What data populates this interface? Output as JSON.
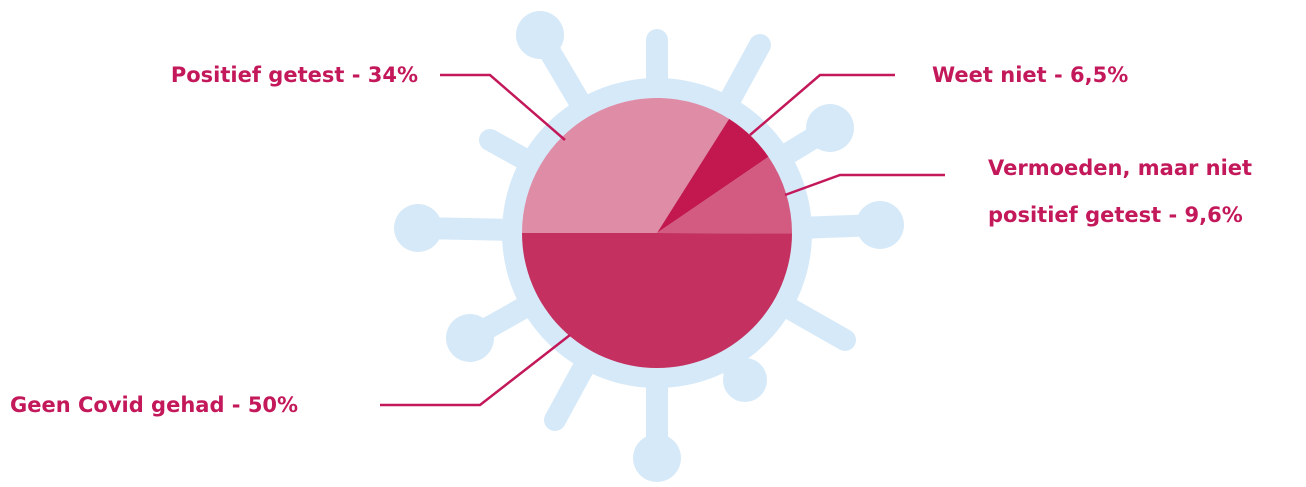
{
  "chart_data": {
    "type": "pie",
    "labels": [
      "Positief getest - 34%",
      "Weet niet - 6,5%",
      "Vermoeden, maar niet positief getest - 9,6%",
      "Geen Covid gehad - 50%"
    ],
    "values": [
      34,
      6.5,
      9.6,
      50
    ],
    "colors": [
      "#df8ca6",
      "#c2184f",
      "#d35a80",
      "#c4305f"
    ]
  }
}
